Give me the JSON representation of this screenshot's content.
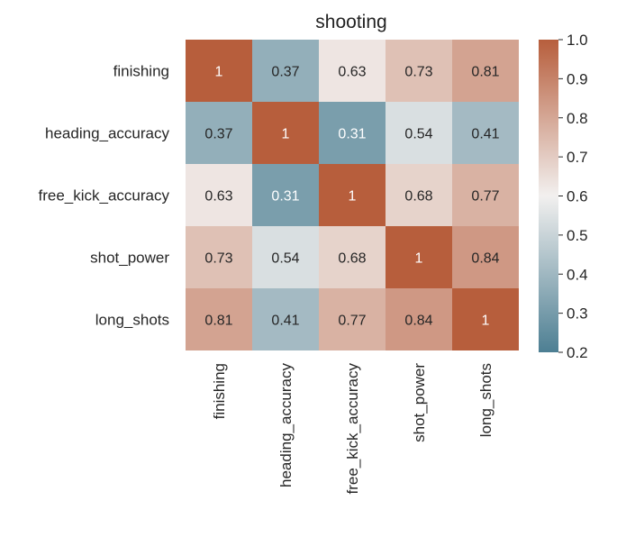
{
  "chart_data": {
    "type": "heatmap",
    "title": "shooting",
    "rows": [
      "finishing",
      "heading_accuracy",
      "free_kick_accuracy",
      "shot_power",
      "long_shots"
    ],
    "columns": [
      "finishing",
      "heading_accuracy",
      "free_kick_accuracy",
      "shot_power",
      "long_shots"
    ],
    "values": [
      [
        1,
        0.37,
        0.63,
        0.73,
        0.81
      ],
      [
        0.37,
        1,
        0.31,
        0.54,
        0.41
      ],
      [
        0.63,
        0.31,
        1,
        0.68,
        0.77
      ],
      [
        0.73,
        0.54,
        0.68,
        1,
        0.84
      ],
      [
        0.81,
        0.41,
        0.77,
        0.84,
        1
      ]
    ],
    "colorbar": {
      "min": 0.2,
      "max": 1.0,
      "ticks": [
        "0.2",
        "0.3",
        "0.4",
        "0.5",
        "0.6",
        "0.7",
        "0.8",
        "0.9",
        "1.0"
      ]
    },
    "colormap": {
      "low": "#4d7f93",
      "mid": "#f2f0ef",
      "high": "#b75e3c",
      "mid_value": 0.6
    },
    "annotations": true,
    "grid": false,
    "legend": "colorbar-right"
  }
}
